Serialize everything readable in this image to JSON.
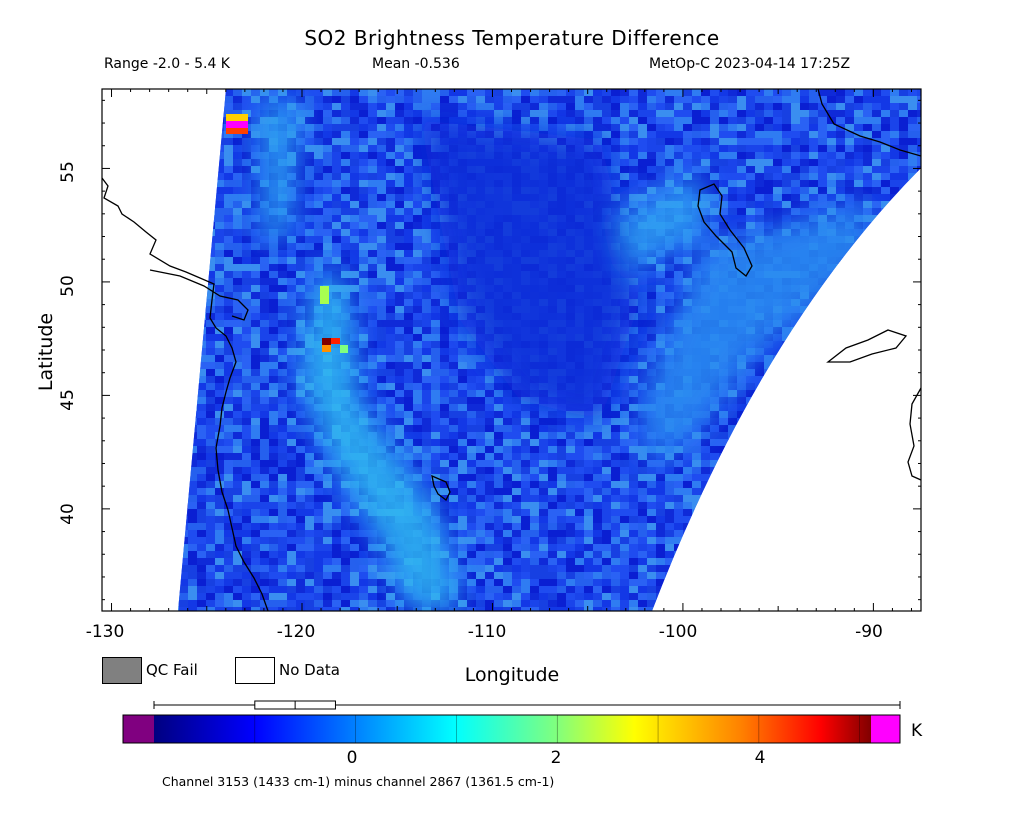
{
  "header": {
    "title": "SO2 Brightness Temperature Difference",
    "range": "Range -2.0 - 5.4 K",
    "mean": "Mean -0.536",
    "satellite_time": "MetOp-C 2023-04-14 17:25Z"
  },
  "axes": {
    "xlabel": "Longitude",
    "ylabel": "Latitude",
    "x_ticks": [
      "-130",
      "-120",
      "-110",
      "-100",
      "-90"
    ],
    "y_ticks": [
      "40",
      "45",
      "50",
      "55"
    ],
    "lon_range": [
      -130.5,
      -87.5
    ],
    "lat_range": [
      35.5,
      58.5
    ]
  },
  "legend": {
    "qc_fail_label": "QC Fail",
    "no_data_label": "No Data",
    "qc_fail_color": "#808080",
    "no_data_color": "#ffffff"
  },
  "colorbar": {
    "ticks": [
      "0",
      "2",
      "4"
    ],
    "unit": "K",
    "range": [
      -2.0,
      5.4
    ],
    "underflow_color": "#800080",
    "overflow_color": "#ff00ff",
    "colors": [
      "#000080",
      "#0000ff",
      "#00ffff",
      "#7fff7f",
      "#ffff00",
      "#ff8000",
      "#ff0000",
      "#800000"
    ],
    "box_plot": {
      "lower_whisker": -2.0,
      "q1": -1.0,
      "median": -0.6,
      "q3": -0.2,
      "upper_whisker": 5.4
    }
  },
  "footnote": "Channel 3153 (1433 cm-1) minus channel 2867 (1361.5 cm-1)",
  "colors": {
    "background_field": "#1f4cf0",
    "plume": "#33c4f5",
    "hotspot": "#ff2000"
  }
}
